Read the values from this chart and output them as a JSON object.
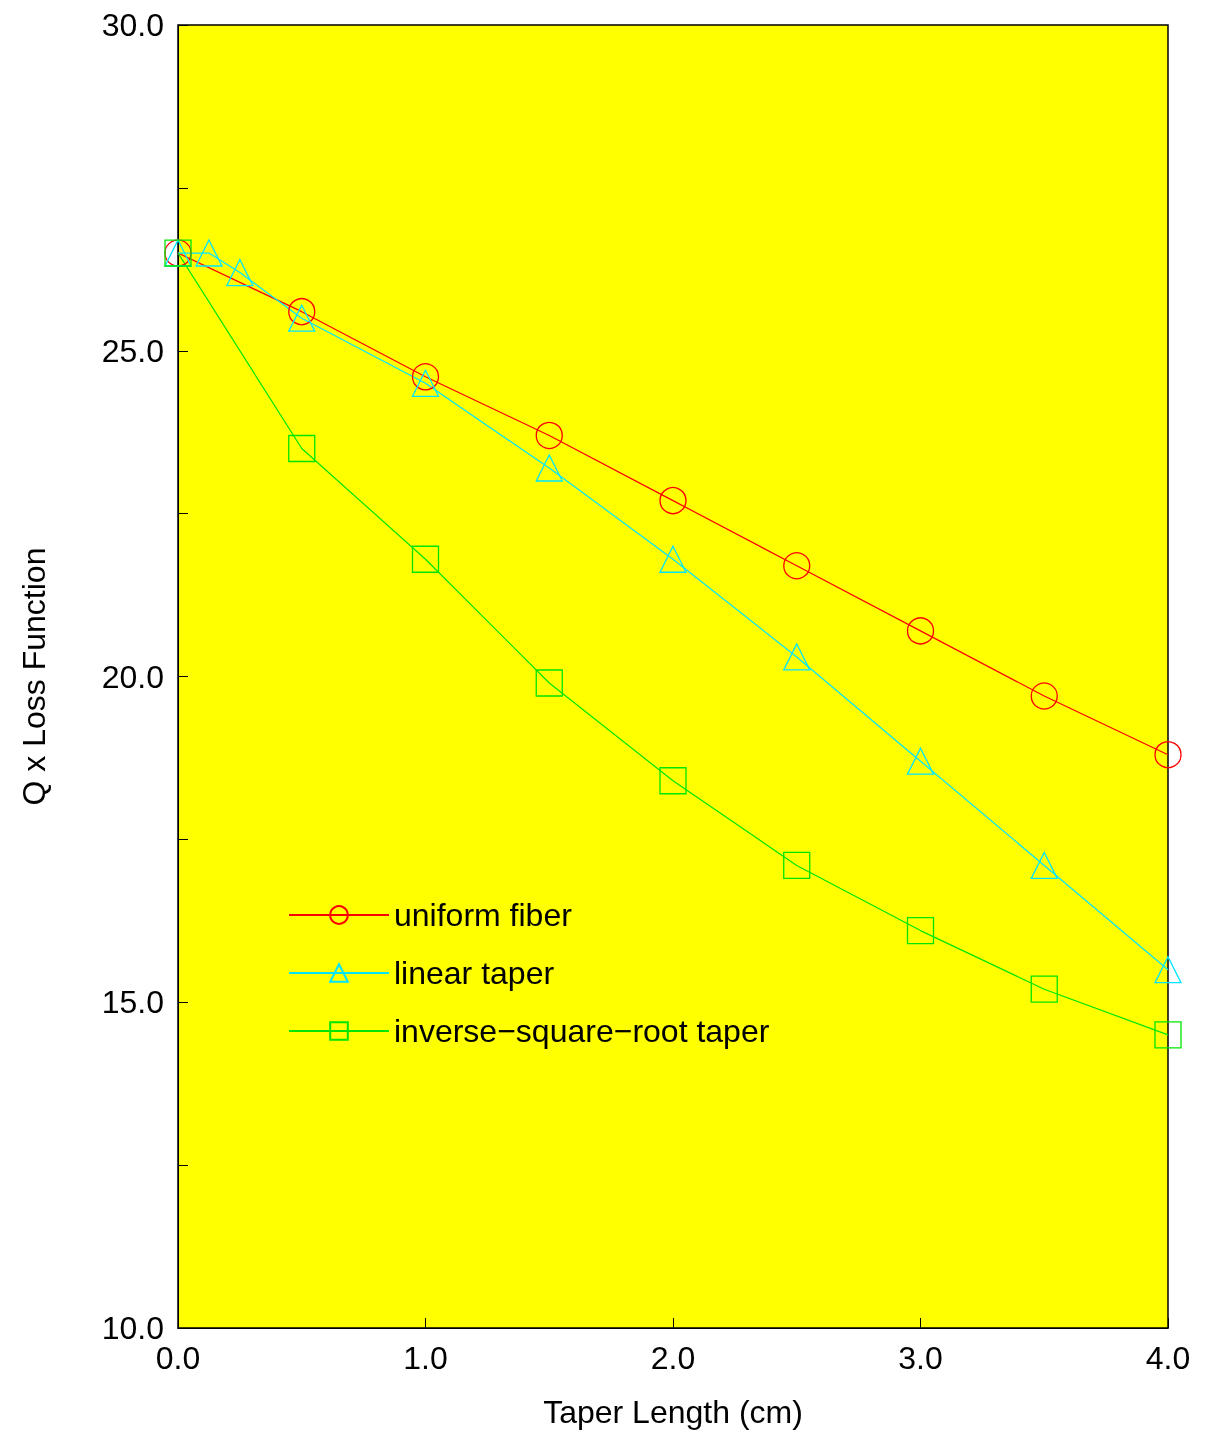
{
  "chart_data": {
    "type": "line",
    "xlabel": "Taper Length (cm)",
    "ylabel": "Q x Loss Function",
    "xlim": [
      0,
      4
    ],
    "ylim": [
      10,
      30
    ],
    "xticks": [
      {
        "value": 0,
        "label": "0.0"
      },
      {
        "value": 1,
        "label": "1.0"
      },
      {
        "value": 2,
        "label": "2.0"
      },
      {
        "value": 3,
        "label": "3.0"
      },
      {
        "value": 4,
        "label": "4.0"
      }
    ],
    "yticks": [
      {
        "value": 10,
        "label": "10.0"
      },
      {
        "value": 12.5,
        "label": null
      },
      {
        "value": 15,
        "label": "15.0"
      },
      {
        "value": 17.5,
        "label": null
      },
      {
        "value": 20,
        "label": "20.0"
      },
      {
        "value": 22.5,
        "label": null
      },
      {
        "value": 25,
        "label": "25.0"
      },
      {
        "value": 27.5,
        "label": null
      },
      {
        "value": 30,
        "label": "30.0"
      }
    ],
    "grid": false,
    "legend": "bottom left",
    "series": [
      {
        "name": "uniform fiber",
        "color": "#ff0000",
        "marker": "circle",
        "x": [
          0,
          0.5,
          1,
          1.5,
          2,
          2.5,
          3,
          3.5,
          4
        ],
        "values": [
          26.5,
          25.6,
          24.6,
          23.7,
          22.7,
          21.7,
          20.7,
          19.7,
          18.8
        ]
      },
      {
        "name": "linear taper",
        "color": "#00e5ff",
        "marker": "triangle",
        "x": [
          0,
          0.125,
          0.25,
          0.5,
          1,
          1.5,
          2,
          2.5,
          3,
          3.5,
          4
        ],
        "values": [
          26.5,
          26.5,
          26.2,
          25.5,
          24.5,
          23.2,
          21.8,
          20.3,
          18.7,
          17.1,
          15.5
        ]
      },
      {
        "name": "inverse−square−root taper",
        "color": "#00e600",
        "marker": "square",
        "x": [
          0,
          0.5,
          1,
          1.5,
          2,
          2.5,
          3,
          3.5,
          4
        ],
        "values": [
          26.5,
          23.5,
          21.8,
          19.9,
          18.4,
          17.1,
          16.1,
          15.2,
          14.5
        ]
      }
    ]
  }
}
